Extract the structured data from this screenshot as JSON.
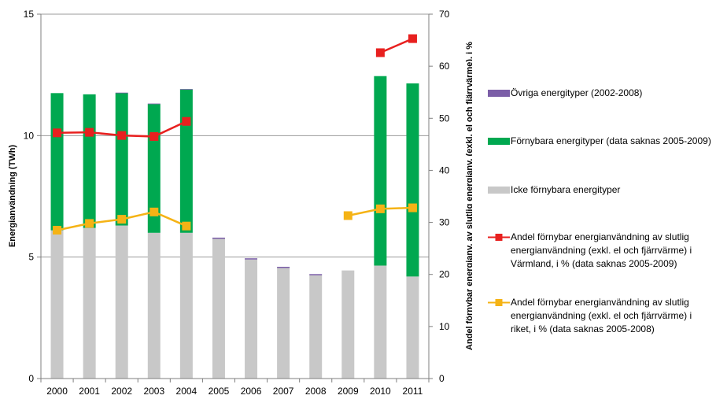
{
  "chart_data": {
    "type": "bar",
    "categories": [
      "2000",
      "2001",
      "2002",
      "2003",
      "2004",
      "2005",
      "2006",
      "2007",
      "2008",
      "2009",
      "2010",
      "2011"
    ],
    "left_axis": {
      "label": "Energianvändning (TWh)",
      "ylim": [
        0,
        15
      ],
      "ticks": [
        0,
        5,
        10,
        15
      ]
    },
    "right_axis": {
      "label": "Andel förnybar energianv. av slutlig energianv. (exkl. el och fjärrvärme), i %",
      "ylim": [
        0,
        70
      ],
      "ticks": [
        0,
        10,
        20,
        30,
        40,
        50,
        60,
        70
      ]
    },
    "grid": true,
    "legend_position": "right",
    "stacked_series": [
      {
        "name": "Icke förnybara energityper",
        "color": "#c8c8c8",
        "values": [
          6.1,
          6.2,
          6.3,
          6.0,
          6.0,
          5.75,
          4.9,
          4.55,
          4.25,
          4.45,
          4.65,
          4.2
        ]
      },
      {
        "name": "Förnybara energityper (data saknas 2005-2009)",
        "color": "#00a850",
        "values": [
          5.65,
          5.5,
          5.45,
          5.3,
          5.9,
          null,
          null,
          null,
          null,
          null,
          7.8,
          7.95
        ]
      },
      {
        "name": "Övriga energityper (2002-2008)",
        "color": "#7b5ea7",
        "values": [
          null,
          null,
          0.02,
          0.02,
          0.02,
          0.05,
          0.05,
          0.05,
          0.05,
          null,
          null,
          null
        ]
      }
    ],
    "line_series": [
      {
        "name": "Andel förnybar energianvändning av slutlig energianvändning (exkl. el och fjärrvärme) i Värmland, i % (data saknas 2005-2009)",
        "color": "#e8201f",
        "axis": "right",
        "values": [
          47.2,
          47.3,
          46.7,
          46.5,
          49.4,
          null,
          null,
          null,
          null,
          null,
          62.6,
          65.3
        ]
      },
      {
        "name": "Andel förnybar energianvändning av slutlig energianvändning (exkl. el och fjärrvärme) i riket, i % (data saknas 2005-2008)",
        "color": "#f5b315",
        "axis": "right",
        "values": [
          28.5,
          29.8,
          30.6,
          32.0,
          29.3,
          null,
          null,
          null,
          null,
          31.3,
          32.6,
          32.8
        ]
      }
    ]
  },
  "legend": [
    {
      "key": "ovriga",
      "label": "Övriga energityper (2002-2008)",
      "color": "#7b5ea7",
      "kind": "box"
    },
    {
      "key": "fornybara",
      "label": "Förnybara energityper (data saknas 2005-2009)",
      "color": "#00a850",
      "kind": "box"
    },
    {
      "key": "icke",
      "label": "Icke förnybara energityper",
      "color": "#c8c8c8",
      "kind": "box"
    },
    {
      "key": "varmland",
      "label": "Andel förnybar energianvändning av slutlig energianvändning (exkl. el och fjärrvärme) i Värmland, i % (data saknas 2005-2009)",
      "color": "#e8201f",
      "kind": "line"
    },
    {
      "key": "riket",
      "label": "Andel förnybar energianvändning av slutlig energianvändning (exkl. el och fjärrvärme) i riket, i % (data saknas 2005-2008)",
      "color": "#f5b315",
      "kind": "line"
    }
  ]
}
